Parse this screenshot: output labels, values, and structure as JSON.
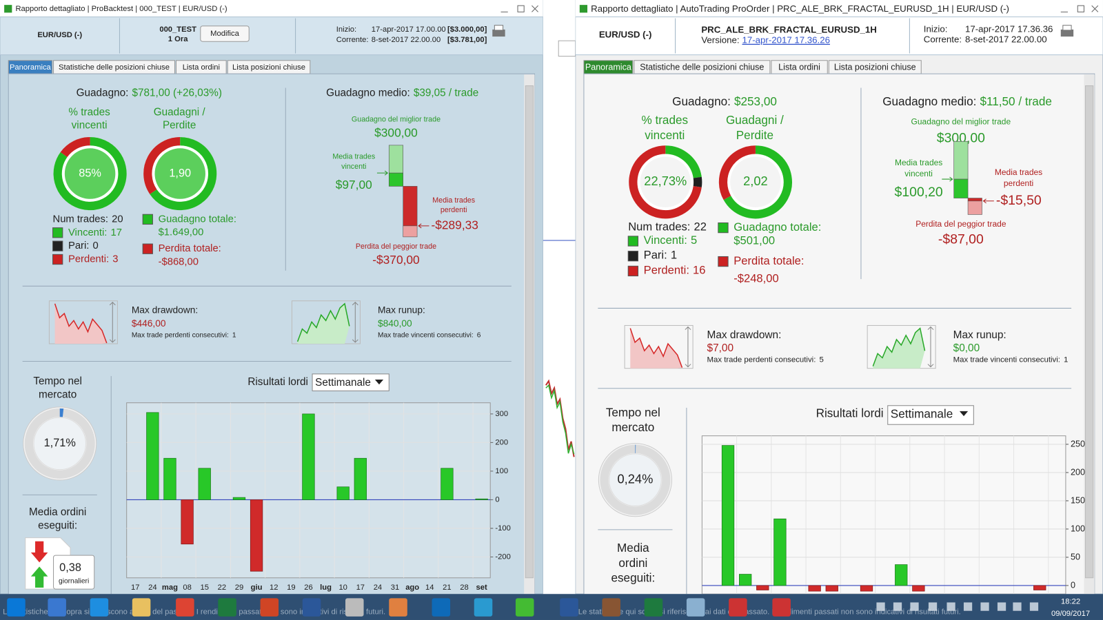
{
  "windows": [
    {
      "title": "Rapporto dettagliato | ProBacktest | 000_TEST | EUR/USD (-)",
      "instrument": "EUR/USD (-)",
      "system": "000_TEST",
      "timeframe": "1 Ora",
      "button": "Modifica",
      "start_label": "Inizio:",
      "start": "17-apr-2017 17.00.00",
      "start_capital": "[$3.000,00]",
      "current_label": "Corrente:",
      "current": "8-set-2017 22.00.00",
      "current_capital": "[$3.781,00]",
      "tabs": [
        "Panoramica",
        "Statistiche delle posizioni chiuse",
        "Lista ordini",
        "Lista posizioni chiuse"
      ],
      "gain_label": "Guadagno:",
      "gain": "$781,00 (+26,03%)",
      "win_title": [
        "% trades",
        "vincenti"
      ],
      "win_pct": {
        "value": 85,
        "label": "85%"
      },
      "ratio_title": [
        "Guadagni /",
        "Perdite"
      ],
      "ratio": {
        "value": 1.9,
        "label": "1,90"
      },
      "trades_label": "Num trades:",
      "trades": 20,
      "wins_label": "Vincenti:",
      "wins": 17,
      "ties_label": "Pari:",
      "ties": 0,
      "losses_label": "Perdenti:",
      "losses": 3,
      "total_gain_label": "Guadagno totale:",
      "total_gain": {
        "value": 1649,
        "label": "$1.649,00"
      },
      "total_loss_label": "Perdita totale:",
      "total_loss": {
        "value": -868,
        "label": "-$868,00"
      },
      "avg_label": "Guadagno medio:",
      "avg": "$39,05 / trade",
      "best_label": "Guadagno del miglior trade",
      "best": {
        "value": 300,
        "label": "$300,00"
      },
      "avg_win_label": [
        "Media trades",
        "vincenti"
      ],
      "avg_win": {
        "value": 97,
        "label": "$97,00"
      },
      "avg_loss_label": [
        "Media trades",
        "perdenti"
      ],
      "avg_loss": {
        "value": -289.33,
        "label": "-$289,33"
      },
      "worst_label": "Perdita del peggior trade",
      "worst": {
        "value": -370,
        "label": "-$370,00"
      },
      "drawdown_label": "Max drawdown:",
      "drawdown": {
        "value": 446,
        "label": "$446,00"
      },
      "drawdown_streak_label": "Max trade perdenti consecutivi:",
      "drawdown_streak": 1,
      "runup_label": "Max runup:",
      "runup": {
        "value": 840,
        "label": "$840,00"
      },
      "runup_streak_label": "Max trade vincenti consecutivi:",
      "runup_streak": 6,
      "market_label": [
        "Tempo nel",
        "mercato"
      ],
      "market": {
        "value": 1.71,
        "label": "1,71%"
      },
      "orders_label": [
        "Media ordini",
        "eseguiti:"
      ],
      "orders": {
        "value": 0.38,
        "label": "0,38"
      },
      "orders_unit": "giornalieri",
      "results_label": "Risultati lordi",
      "period": "Settimanale",
      "chart": {
        "type": "bar",
        "categories": [
          "17",
          "24",
          "mag",
          "08",
          "15",
          "22",
          "29",
          "giu",
          "12",
          "19",
          "26",
          "lug",
          "10",
          "17",
          "24",
          "31",
          "ago",
          "14",
          "21",
          "28",
          "set"
        ],
        "values": [
          0,
          305,
          145,
          -155,
          110,
          0,
          8,
          -250,
          0,
          0,
          300,
          0,
          45,
          145,
          0,
          0,
          0,
          0,
          110,
          0,
          3
        ],
        "ylim": [
          -273,
          339
        ],
        "yticks": [
          -200,
          -100,
          0,
          100,
          200,
          300
        ]
      },
      "status": "Le statistiche qui sopra si riferiscono ai dati del passato. I rendimenti passati non sono indicativi di risultati futuri."
    },
    {
      "title": "Rapporto dettagliato | AutoTrading ProOrder | PRC_ALE_BRK_FRACTAL_EURUSD_1H | EUR/USD (-)",
      "instrument": "EUR/USD (-)",
      "system": "PRC_ALE_BRK_FRACTAL_EURUSD_1H",
      "version_label": "Versione:",
      "version": "17-apr-2017 17.36.26",
      "start_label": "Inizio:",
      "start": "17-apr-2017 17.36.36",
      "current_label": "Corrente:",
      "current": "8-set-2017 22.00.00",
      "tabs": [
        "Panoramica",
        "Statistiche delle posizioni chiuse",
        "Lista ordini",
        "Lista posizioni chiuse"
      ],
      "gain_label": "Guadagno:",
      "gain": "$253,00",
      "win_title": [
        "% trades",
        "vincenti"
      ],
      "win_pct": {
        "value": 22.73,
        "label": "22,73%"
      },
      "ratio_title": [
        "Guadagni /",
        "Perdite"
      ],
      "ratio": {
        "value": 2.02,
        "label": "2,02"
      },
      "trades_label": "Num trades:",
      "trades": 22,
      "wins_label": "Vincenti:",
      "wins": 5,
      "ties_label": "Pari:",
      "ties": 1,
      "losses_label": "Perdenti:",
      "losses": 16,
      "total_gain_label": "Guadagno totale:",
      "total_gain": {
        "value": 501,
        "label": "$501,00"
      },
      "total_loss_label": "Perdita totale:",
      "total_loss": {
        "value": -248,
        "label": "-$248,00"
      },
      "avg_label": "Guadagno medio:",
      "avg": "$11,50 / trade",
      "best_label": "Guadagno del miglior trade",
      "best": {
        "value": 300,
        "label": "$300,00"
      },
      "avg_win_label": [
        "Media trades",
        "vincenti"
      ],
      "avg_win": {
        "value": 100.2,
        "label": "$100,20"
      },
      "avg_loss_label": [
        "Media trades",
        "perdenti"
      ],
      "avg_loss": {
        "value": -15.5,
        "label": "-$15,50"
      },
      "worst_label": "Perdita del peggior trade",
      "worst": {
        "value": -87,
        "label": "-$87,00"
      },
      "drawdown_label": "Max drawdown:",
      "drawdown": {
        "value": 7,
        "label": "$7,00"
      },
      "drawdown_streak_label": "Max trade perdenti consecutivi:",
      "drawdown_streak": 5,
      "runup_label": "Max runup:",
      "runup": {
        "value": 0,
        "label": "$0,00"
      },
      "runup_streak_label": "Max trade vincenti consecutivi:",
      "runup_streak": 1,
      "market_label": [
        "Tempo nel",
        "mercato"
      ],
      "market": {
        "value": 0.24,
        "label": "0,24%"
      },
      "orders_label": [
        "Media",
        "ordini",
        "eseguiti:"
      ],
      "results_label": "Risultati lordi",
      "period": "Settimanale",
      "chart": {
        "type": "bar",
        "values": [
          0,
          248,
          20,
          -8,
          118,
          0,
          -10,
          -10,
          0,
          -10,
          0,
          37,
          -10,
          0,
          0,
          0,
          0,
          0,
          0,
          -8,
          0
        ],
        "ylim": [
          -15,
          265
        ],
        "yticks": [
          0,
          50,
          100,
          150,
          200,
          250
        ]
      },
      "status": "Le statistiche qui sopra si riferiscono ai dati del passato. I rendimenti passati non sono indicativi di risultati futuri."
    }
  ],
  "taskbar": {
    "time": "18:22",
    "date": "09/09/2017"
  }
}
